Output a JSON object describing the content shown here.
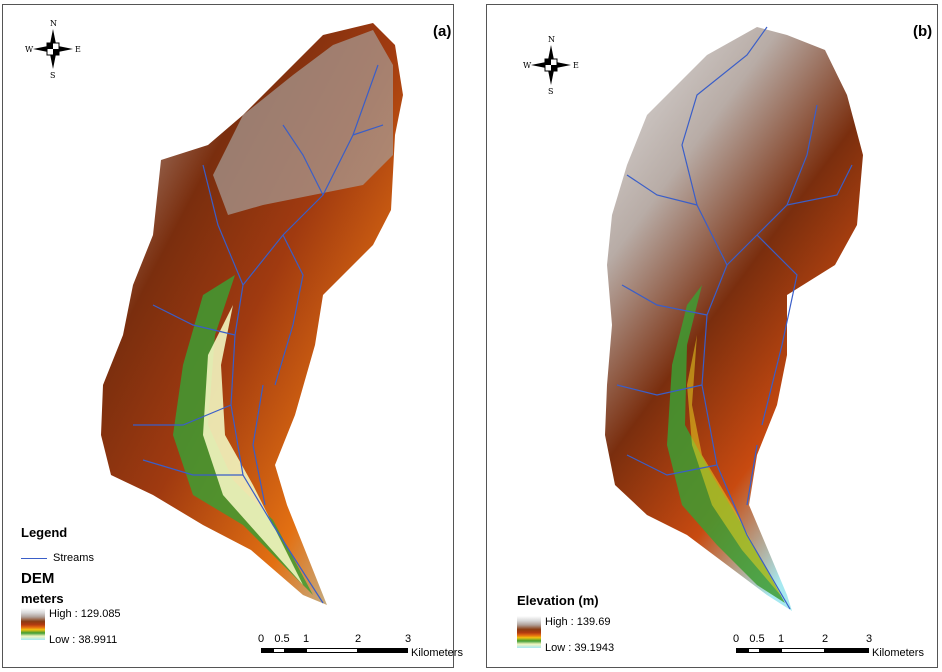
{
  "panels": {
    "a": {
      "label": "(a)",
      "compass": {
        "n": "N",
        "s": "S",
        "w": "W",
        "e": "E"
      },
      "legend": {
        "title": "Legend",
        "streams": "Streams",
        "heading1": "DEM",
        "heading2": "meters",
        "high": "High : 129.085",
        "low": "Low : 38.9911"
      },
      "scale": {
        "ticks": [
          "0",
          "0.5",
          "1",
          "2",
          "3"
        ],
        "units": "Kilometers"
      }
    },
    "b": {
      "label": "(b)",
      "compass": {
        "n": "N",
        "s": "S",
        "w": "W",
        "e": "E"
      },
      "legend": {
        "heading1": "Elevation (m)",
        "high": "High : 139.69",
        "low": "Low : 39.1943"
      },
      "scale": {
        "ticks": [
          "0",
          "0.5",
          "1",
          "2",
          "3"
        ],
        "units": "Kilometers"
      }
    }
  },
  "colors": {
    "stream": "#3a5ec8",
    "high": "#ffffff",
    "mid_high": "#8a3c12",
    "mid": "#e26a10",
    "mid_low": "#3e9c32",
    "low": "#a6e8f0"
  }
}
